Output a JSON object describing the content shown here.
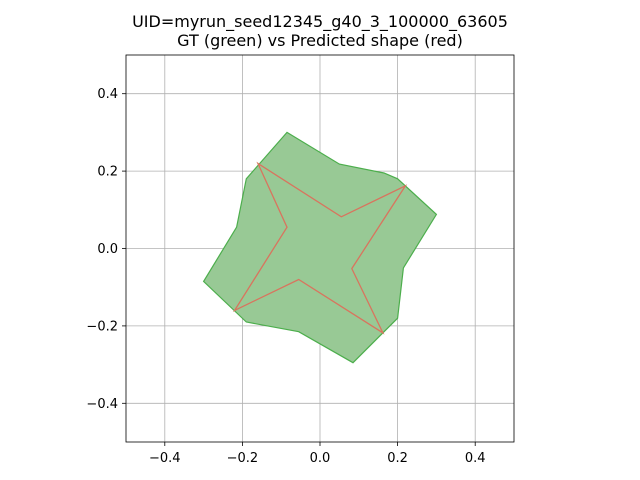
{
  "chart_data": {
    "type": "polygon",
    "title_lines": [
      "UID=myrun_seed12345_g40_3_100000_63605",
      "GT (green) vs Predicted shape (red)"
    ],
    "xlim": [
      -0.5,
      0.5
    ],
    "ylim": [
      -0.5,
      0.5
    ],
    "x_ticks": [
      -0.4,
      -0.2,
      0.0,
      0.2,
      0.4
    ],
    "x_tick_labels": [
      "−0.4",
      "−0.2",
      "0.0",
      "0.2",
      "0.4"
    ],
    "y_ticks": [
      -0.4,
      -0.2,
      0.0,
      0.2,
      0.4
    ],
    "y_tick_labels": [
      "−0.4",
      "−0.2",
      "0.0",
      "0.2",
      "0.4"
    ],
    "grid": true,
    "series": [
      {
        "color": "#4cae4c",
        "fill": "#98c995",
        "points": [
          [
            -0.085,
            0.3
          ],
          [
            0.05,
            0.218
          ],
          [
            0.165,
            0.195
          ],
          [
            0.2,
            0.18
          ],
          [
            0.3,
            0.088
          ],
          [
            0.215,
            -0.05
          ],
          [
            0.2,
            -0.18
          ],
          [
            0.085,
            -0.295
          ],
          [
            -0.055,
            -0.215
          ],
          [
            -0.19,
            -0.19
          ],
          [
            -0.3,
            -0.085
          ],
          [
            -0.215,
            0.055
          ],
          [
            -0.19,
            0.18
          ]
        ]
      },
      {
        "color": "#d9745e",
        "fill": "none",
        "points": [
          [
            -0.16,
            0.22
          ],
          [
            0.055,
            0.082
          ],
          [
            0.22,
            0.162
          ],
          [
            0.082,
            -0.052
          ],
          [
            0.162,
            -0.218
          ],
          [
            -0.055,
            -0.08
          ],
          [
            -0.22,
            -0.16
          ],
          [
            -0.085,
            0.055
          ]
        ]
      }
    ]
  }
}
